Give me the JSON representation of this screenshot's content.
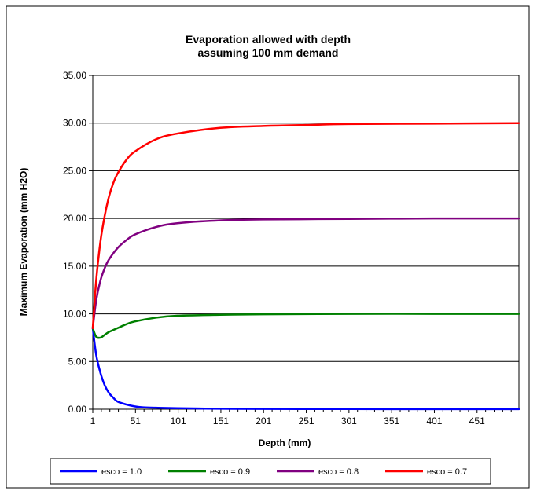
{
  "chart_data": {
    "type": "line",
    "title_lines": [
      "Evaporation allowed with depth",
      "assuming 100 mm demand"
    ],
    "xlabel": "Depth (mm)",
    "ylabel": "Maximum Evaporation (mm H2O)",
    "xlim": [
      1,
      500
    ],
    "ylim": [
      0,
      35
    ],
    "x_ticks": [
      "1",
      "51",
      "101",
      "151",
      "201",
      "251",
      "301",
      "351",
      "401",
      "451"
    ],
    "y_ticks": [
      "0.00",
      "5.00",
      "10.00",
      "15.00",
      "20.00",
      "25.00",
      "30.00",
      "35.00"
    ],
    "grid": "horizontal",
    "legend_position": "bottom",
    "series": [
      {
        "name": "esco = 1.0",
        "color": "#0000ff",
        "x": [
          1,
          5,
          10,
          15,
          20,
          25,
          30,
          40,
          50,
          60,
          75,
          100,
          150,
          200,
          300,
          400,
          500
        ],
        "values": [
          8.5,
          5.7,
          3.8,
          2.5,
          1.7,
          1.2,
          0.8,
          0.5,
          0.3,
          0.2,
          0.15,
          0.1,
          0.05,
          0.03,
          0.02,
          0.01,
          0.01
        ]
      },
      {
        "name": "esco = 0.9",
        "color": "#008000",
        "x": [
          1,
          5,
          10,
          15,
          20,
          30,
          40,
          50,
          75,
          100,
          150,
          200,
          300,
          400,
          500
        ],
        "values": [
          8.5,
          7.6,
          7.5,
          7.8,
          8.1,
          8.5,
          8.9,
          9.2,
          9.6,
          9.8,
          9.9,
          9.95,
          10.0,
          10.0,
          10.0
        ]
      },
      {
        "name": "esco = 0.8",
        "color": "#800080",
        "x": [
          1,
          5,
          10,
          15,
          20,
          30,
          40,
          50,
          75,
          100,
          150,
          200,
          300,
          400,
          500
        ],
        "values": [
          8.5,
          11.4,
          13.5,
          14.8,
          15.7,
          16.9,
          17.7,
          18.3,
          19.1,
          19.5,
          19.8,
          19.9,
          19.95,
          20.0,
          20.0
        ]
      },
      {
        "name": "esco = 0.7",
        "color": "#ff0000",
        "x": [
          1,
          5,
          10,
          15,
          20,
          25,
          30,
          40,
          50,
          75,
          100,
          150,
          200,
          250,
          300,
          400,
          500
        ],
        "values": [
          8.5,
          13.5,
          17.6,
          20.3,
          22.3,
          23.7,
          24.7,
          26.1,
          27.0,
          28.3,
          28.9,
          29.5,
          29.7,
          29.8,
          29.9,
          29.95,
          30.0
        ]
      }
    ]
  }
}
